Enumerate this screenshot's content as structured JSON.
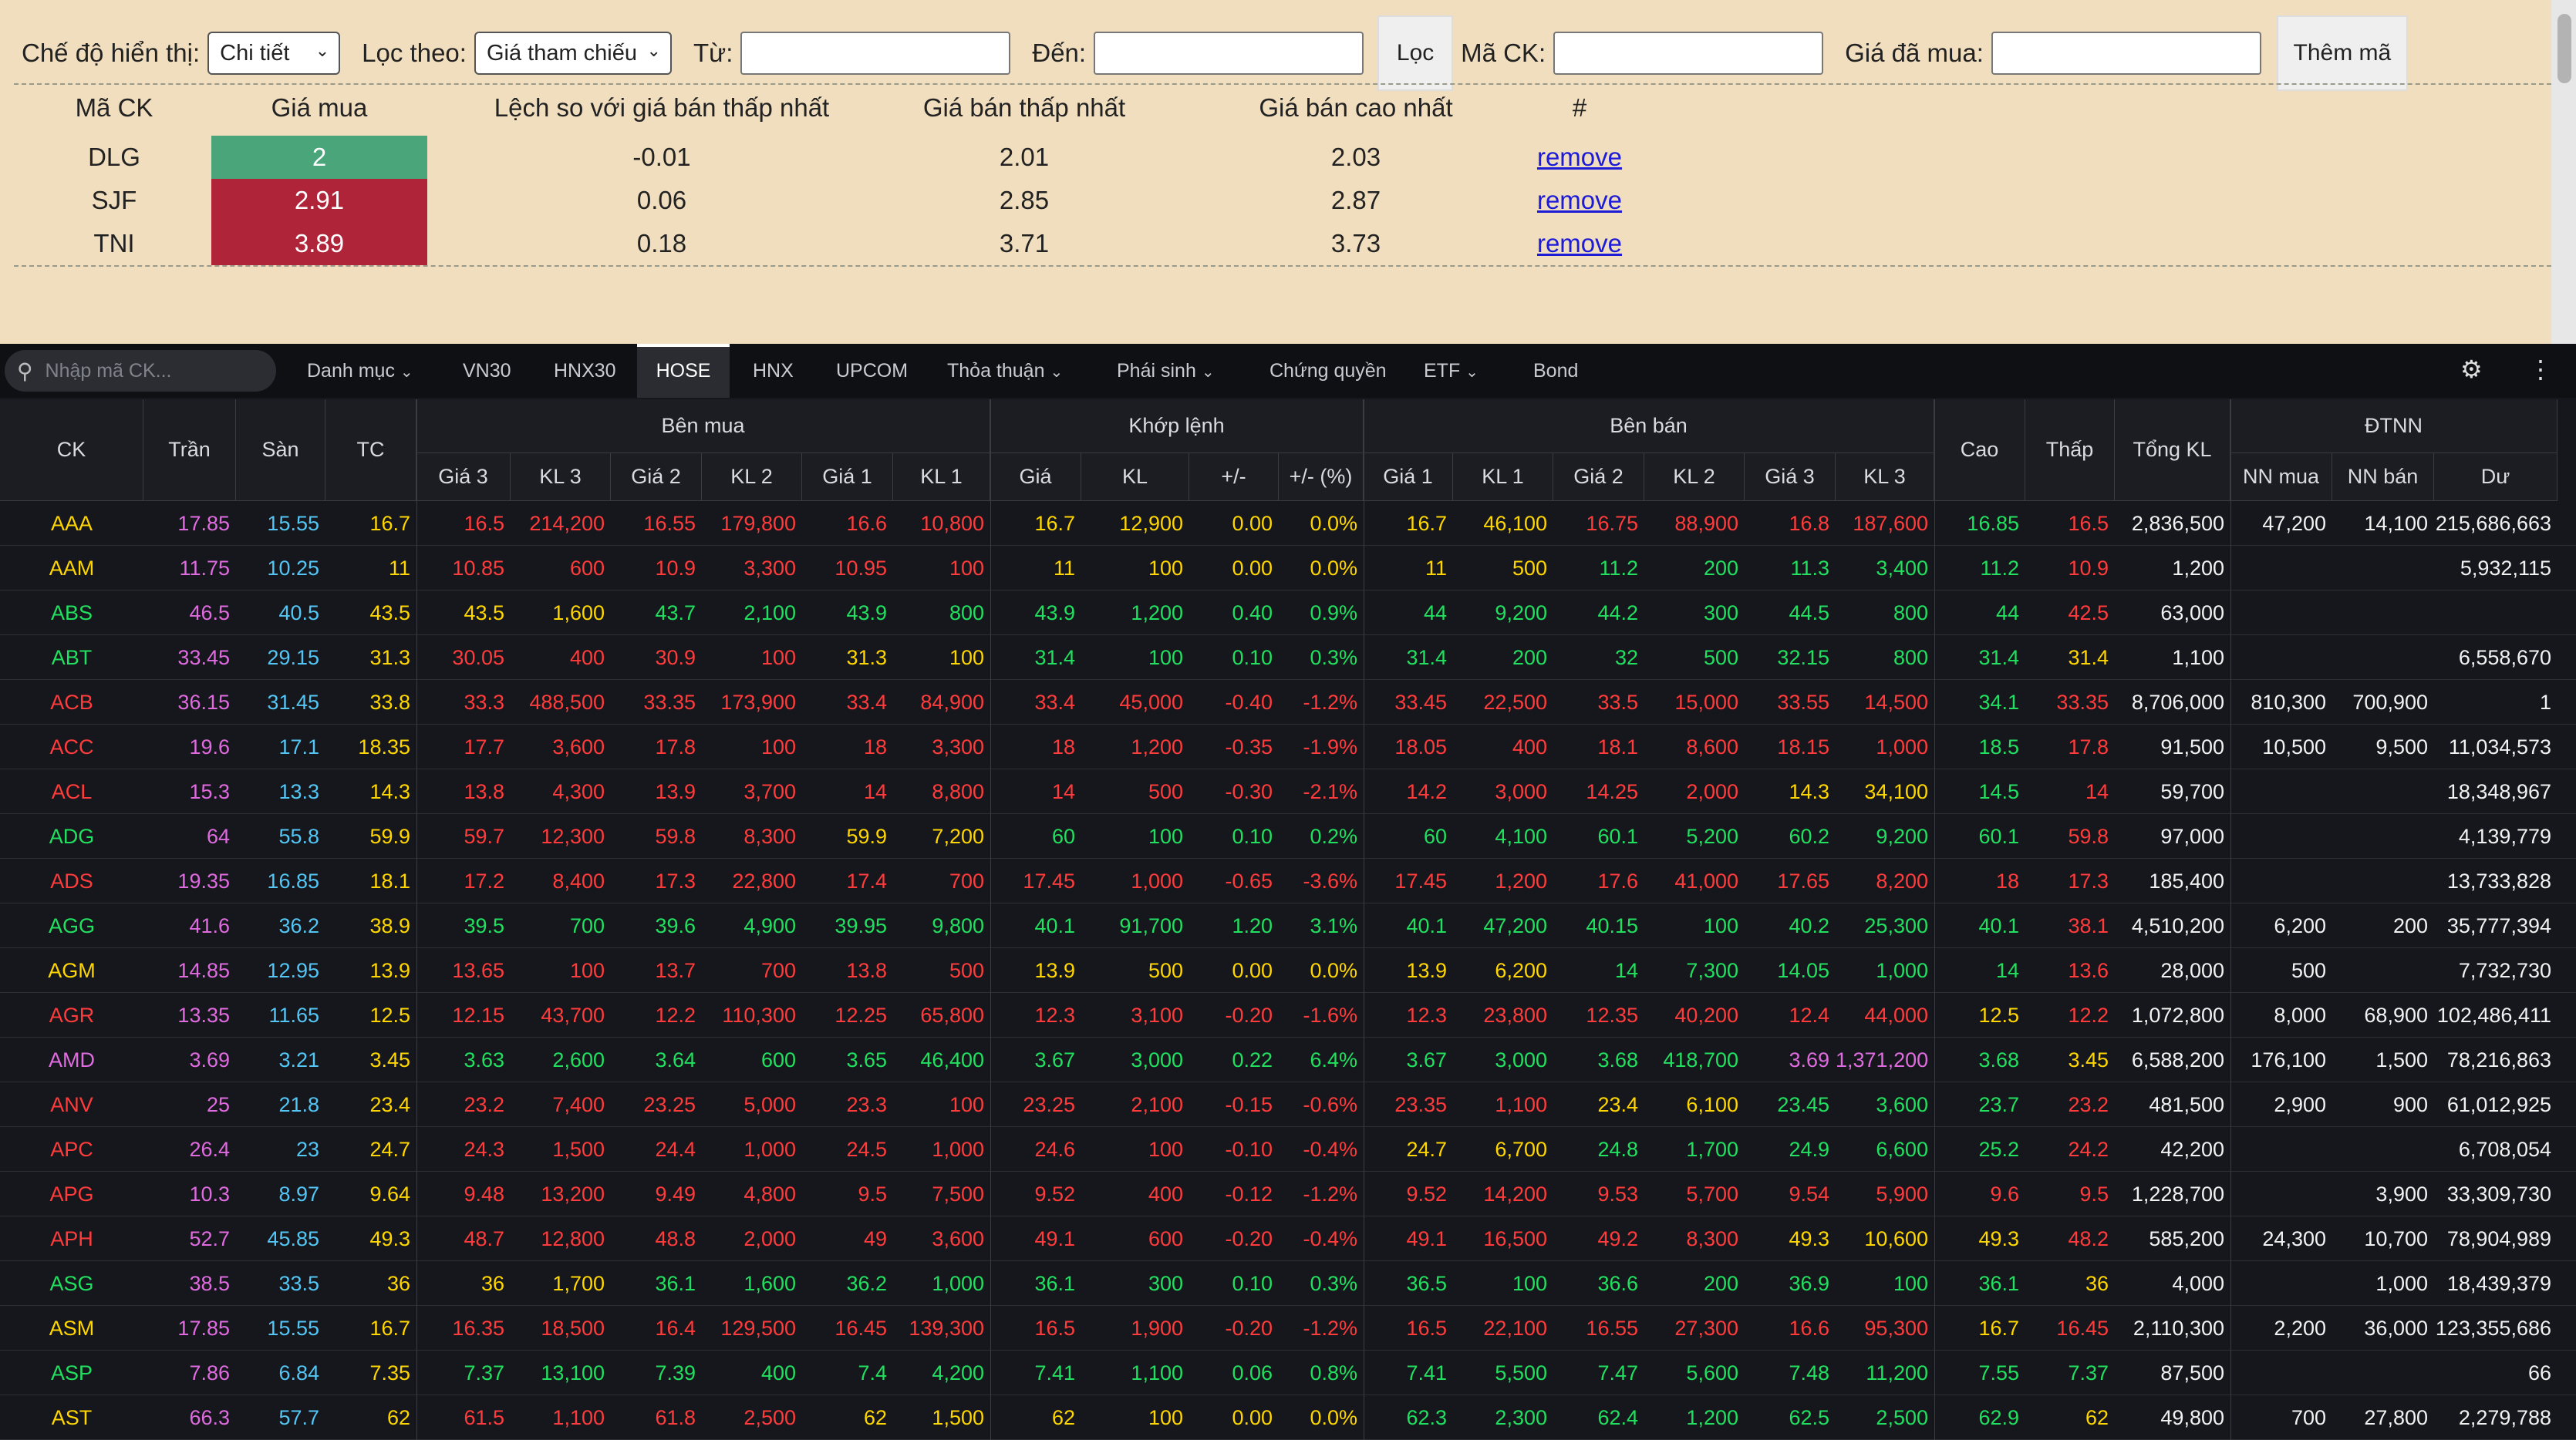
{
  "filter": {
    "display_mode_label": "Chế độ hiển thị:",
    "display_mode_value": "Chi tiết",
    "filter_by_label": "Lọc theo:",
    "filter_by_value": "Giá tham chiếu",
    "from_label": "Từ:",
    "to_label": "Đến:",
    "filter_button": "Lọc",
    "code_label": "Mã CK:",
    "bought_price_label": "Giá đã mua:",
    "add_button": "Thêm mã"
  },
  "watchlist": {
    "headers": [
      "Mã CK",
      "Giá mua",
      "Lệch so với giá bán thấp nhất",
      "Giá bán thấp nhất",
      "Giá bán cao nhất",
      "#"
    ],
    "rows": [
      {
        "code": "DLG",
        "buy": "2",
        "diff": "-0.01",
        "low": "2.01",
        "high": "2.03",
        "action": "remove",
        "bg": "#4aa57a"
      },
      {
        "code": "SJF",
        "buy": "2.91",
        "diff": "0.06",
        "low": "2.85",
        "high": "2.87",
        "action": "remove",
        "bg": "#b0243a"
      },
      {
        "code": "TNI",
        "buy": "3.89",
        "diff": "0.18",
        "low": "3.71",
        "high": "3.73",
        "action": "remove",
        "bg": "#b0243a"
      }
    ]
  },
  "toolbar": {
    "search_placeholder": "Nhập mã CK...",
    "tabs": [
      "Danh mục",
      "VN30",
      "HNX30",
      "HOSE",
      "HNX",
      "UPCOM",
      "Thỏa thuận",
      "Phái sinh",
      "Chứng quyền",
      "ETF",
      "Bond"
    ],
    "active_tab": "HOSE"
  },
  "board": {
    "group_headers": {
      "buy": "Bên mua",
      "match": "Khớp lệnh",
      "sell": "Bên bán",
      "foreign": "ĐTNN"
    },
    "headers": [
      "CK",
      "Trần",
      "Sàn",
      "TC",
      "Giá 3",
      "KL 3",
      "Giá 2",
      "KL 2",
      "Giá 1",
      "KL 1",
      "Giá",
      "KL",
      "+/-",
      "+/- (%)",
      "Giá 1",
      "KL 1",
      "Giá 2",
      "KL 2",
      "Giá 3",
      "KL 3",
      "Cao",
      "Thấp",
      "Tổng KL",
      "NN mua",
      "NN bán",
      "Dư"
    ],
    "rows": [
      [
        "AAA",
        "17.85",
        "15.55",
        "16.7",
        "16.5",
        "214,200",
        "16.55",
        "179,800",
        "16.6",
        "10,800",
        "16.7",
        "12,900",
        "0.00",
        "0.0%",
        "16.7",
        "46,100",
        "16.75",
        "88,900",
        "16.8",
        "187,600",
        "16.85",
        "16.5",
        "2,836,500",
        "47,200",
        "14,100",
        "215,686,663"
      ],
      [
        "AAM",
        "11.75",
        "10.25",
        "11",
        "10.85",
        "600",
        "10.9",
        "3,300",
        "10.95",
        "100",
        "11",
        "100",
        "0.00",
        "0.0%",
        "11",
        "500",
        "11.2",
        "200",
        "11.3",
        "3,400",
        "11.2",
        "10.9",
        "1,200",
        "",
        "",
        "5,932,115"
      ],
      [
        "ABS",
        "46.5",
        "40.5",
        "43.5",
        "43.5",
        "1,600",
        "43.7",
        "2,100",
        "43.9",
        "800",
        "43.9",
        "1,200",
        "0.40",
        "0.9%",
        "44",
        "9,200",
        "44.2",
        "300",
        "44.5",
        "800",
        "44",
        "42.5",
        "63,000",
        "",
        "",
        ""
      ],
      [
        "ABT",
        "33.45",
        "29.15",
        "31.3",
        "30.05",
        "400",
        "30.9",
        "100",
        "31.3",
        "100",
        "31.4",
        "100",
        "0.10",
        "0.3%",
        "31.4",
        "200",
        "32",
        "500",
        "32.15",
        "800",
        "31.4",
        "31.4",
        "1,100",
        "",
        "",
        "6,558,670"
      ],
      [
        "ACB",
        "36.15",
        "31.45",
        "33.8",
        "33.3",
        "488,500",
        "33.35",
        "173,900",
        "33.4",
        "84,900",
        "33.4",
        "45,000",
        "-0.40",
        "-1.2%",
        "33.45",
        "22,500",
        "33.5",
        "15,000",
        "33.55",
        "14,500",
        "34.1",
        "33.35",
        "8,706,000",
        "810,300",
        "700,900",
        "1"
      ],
      [
        "ACC",
        "19.6",
        "17.1",
        "18.35",
        "17.7",
        "3,600",
        "17.8",
        "100",
        "18",
        "3,300",
        "18",
        "1,200",
        "-0.35",
        "-1.9%",
        "18.05",
        "400",
        "18.1",
        "8,600",
        "18.15",
        "1,000",
        "18.5",
        "17.8",
        "91,500",
        "10,500",
        "9,500",
        "11,034,573"
      ],
      [
        "ACL",
        "15.3",
        "13.3",
        "14.3",
        "13.8",
        "4,300",
        "13.9",
        "3,700",
        "14",
        "8,800",
        "14",
        "500",
        "-0.30",
        "-2.1%",
        "14.2",
        "3,000",
        "14.25",
        "2,000",
        "14.3",
        "34,100",
        "14.5",
        "14",
        "59,700",
        "",
        "",
        "18,348,967"
      ],
      [
        "ADG",
        "64",
        "55.8",
        "59.9",
        "59.7",
        "12,300",
        "59.8",
        "8,300",
        "59.9",
        "7,200",
        "60",
        "100",
        "0.10",
        "0.2%",
        "60",
        "4,100",
        "60.1",
        "5,200",
        "60.2",
        "9,200",
        "60.1",
        "59.8",
        "97,000",
        "",
        "",
        "4,139,779"
      ],
      [
        "ADS",
        "19.35",
        "16.85",
        "18.1",
        "17.2",
        "8,400",
        "17.3",
        "22,800",
        "17.4",
        "700",
        "17.45",
        "1,000",
        "-0.65",
        "-3.6%",
        "17.45",
        "1,200",
        "17.6",
        "41,000",
        "17.65",
        "8,200",
        "18",
        "17.3",
        "185,400",
        "",
        "",
        "13,733,828"
      ],
      [
        "AGG",
        "41.6",
        "36.2",
        "38.9",
        "39.5",
        "700",
        "39.6",
        "4,900",
        "39.95",
        "9,800",
        "40.1",
        "91,700",
        "1.20",
        "3.1%",
        "40.1",
        "47,200",
        "40.15",
        "100",
        "40.2",
        "25,300",
        "40.1",
        "38.1",
        "4,510,200",
        "6,200",
        "200",
        "35,777,394"
      ],
      [
        "AGM",
        "14.85",
        "12.95",
        "13.9",
        "13.65",
        "100",
        "13.7",
        "700",
        "13.8",
        "500",
        "13.9",
        "500",
        "0.00",
        "0.0%",
        "13.9",
        "6,200",
        "14",
        "7,300",
        "14.05",
        "1,000",
        "14",
        "13.6",
        "28,000",
        "500",
        "",
        "7,732,730"
      ],
      [
        "AGR",
        "13.35",
        "11.65",
        "12.5",
        "12.15",
        "43,700",
        "12.2",
        "110,300",
        "12.25",
        "65,800",
        "12.3",
        "3,100",
        "-0.20",
        "-1.6%",
        "12.3",
        "23,800",
        "12.35",
        "40,200",
        "12.4",
        "44,000",
        "12.5",
        "12.2",
        "1,072,800",
        "8,000",
        "68,900",
        "102,486,411"
      ],
      [
        "AMD",
        "3.69",
        "3.21",
        "3.45",
        "3.63",
        "2,600",
        "3.64",
        "600",
        "3.65",
        "46,400",
        "3.67",
        "3,000",
        "0.22",
        "6.4%",
        "3.67",
        "3,000",
        "3.68",
        "418,700",
        "3.69",
        "1,371,200",
        "3.68",
        "3.45",
        "6,588,200",
        "176,100",
        "1,500",
        "78,216,863"
      ],
      [
        "ANV",
        "25",
        "21.8",
        "23.4",
        "23.2",
        "7,400",
        "23.25",
        "5,000",
        "23.3",
        "100",
        "23.25",
        "2,100",
        "-0.15",
        "-0.6%",
        "23.35",
        "1,100",
        "23.4",
        "6,100",
        "23.45",
        "3,600",
        "23.7",
        "23.2",
        "481,500",
        "2,900",
        "900",
        "61,012,925"
      ],
      [
        "APC",
        "26.4",
        "23",
        "24.7",
        "24.3",
        "1,500",
        "24.4",
        "1,000",
        "24.5",
        "1,000",
        "24.6",
        "100",
        "-0.10",
        "-0.4%",
        "24.7",
        "6,700",
        "24.8",
        "1,700",
        "24.9",
        "6,600",
        "25.2",
        "24.2",
        "42,200",
        "",
        "",
        "6,708,054"
      ],
      [
        "APG",
        "10.3",
        "8.97",
        "9.64",
        "9.48",
        "13,200",
        "9.49",
        "4,800",
        "9.5",
        "7,500",
        "9.52",
        "400",
        "-0.12",
        "-1.2%",
        "9.52",
        "14,200",
        "9.53",
        "5,700",
        "9.54",
        "5,900",
        "9.6",
        "9.5",
        "1,228,700",
        "",
        "3,900",
        "33,309,730"
      ],
      [
        "APH",
        "52.7",
        "45.85",
        "49.3",
        "48.7",
        "12,800",
        "48.8",
        "2,000",
        "49",
        "3,600",
        "49.1",
        "600",
        "-0.20",
        "-0.4%",
        "49.1",
        "16,500",
        "49.2",
        "8,300",
        "49.3",
        "10,600",
        "49.3",
        "48.2",
        "585,200",
        "24,300",
        "10,700",
        "78,904,989"
      ],
      [
        "ASG",
        "38.5",
        "33.5",
        "36",
        "36",
        "1,700",
        "36.1",
        "1,600",
        "36.2",
        "1,000",
        "36.1",
        "300",
        "0.10",
        "0.3%",
        "36.5",
        "100",
        "36.6",
        "200",
        "36.9",
        "100",
        "36.1",
        "36",
        "4,000",
        "",
        "1,000",
        "18,439,379"
      ],
      [
        "ASM",
        "17.85",
        "15.55",
        "16.7",
        "16.35",
        "18,500",
        "16.4",
        "129,500",
        "16.45",
        "139,300",
        "16.5",
        "1,900",
        "-0.20",
        "-1.2%",
        "16.5",
        "22,100",
        "16.55",
        "27,300",
        "16.6",
        "95,300",
        "16.7",
        "16.45",
        "2,110,300",
        "2,200",
        "36,000",
        "123,355,686"
      ],
      [
        "ASP",
        "7.86",
        "6.84",
        "7.35",
        "7.37",
        "13,100",
        "7.39",
        "400",
        "7.4",
        "4,200",
        "7.41",
        "1,100",
        "0.06",
        "0.8%",
        "7.41",
        "5,500",
        "7.47",
        "5,600",
        "7.48",
        "11,200",
        "7.55",
        "7.37",
        "87,500",
        "",
        "",
        "66"
      ],
      [
        "AST",
        "66.3",
        "57.7",
        "62",
        "61.5",
        "1,100",
        "61.8",
        "2,500",
        "62",
        "1,500",
        "62",
        "100",
        "0.00",
        "0.0%",
        "62.3",
        "2,300",
        "62.4",
        "1,200",
        "62.5",
        "2,500",
        "62.9",
        "62",
        "49,800",
        "700",
        "27,800",
        "2,279,788"
      ]
    ],
    "row_colors": [
      [
        "y",
        "p",
        "c",
        "y",
        "r",
        "r",
        "r",
        "r",
        "r",
        "r",
        "y",
        "y",
        "y",
        "y",
        "y",
        "y",
        "r",
        "r",
        "r",
        "r",
        "g",
        "r",
        "w",
        "w",
        "w",
        "w"
      ],
      [
        "y",
        "p",
        "c",
        "y",
        "r",
        "r",
        "r",
        "r",
        "r",
        "r",
        "y",
        "y",
        "y",
        "y",
        "y",
        "y",
        "g",
        "g",
        "g",
        "g",
        "g",
        "r",
        "w",
        "w",
        "w",
        "w"
      ],
      [
        "g",
        "p",
        "c",
        "y",
        "y",
        "y",
        "g",
        "g",
        "g",
        "g",
        "g",
        "g",
        "g",
        "g",
        "g",
        "g",
        "g",
        "g",
        "g",
        "g",
        "g",
        "r",
        "w",
        "w",
        "w",
        "w"
      ],
      [
        "g",
        "p",
        "c",
        "y",
        "r",
        "r",
        "r",
        "r",
        "y",
        "y",
        "g",
        "g",
        "g",
        "g",
        "g",
        "g",
        "g",
        "g",
        "g",
        "g",
        "g",
        "y",
        "w",
        "w",
        "w",
        "w"
      ],
      [
        "r",
        "p",
        "c",
        "y",
        "r",
        "r",
        "r",
        "r",
        "r",
        "r",
        "r",
        "r",
        "r",
        "r",
        "r",
        "r",
        "r",
        "r",
        "r",
        "r",
        "g",
        "r",
        "w",
        "w",
        "w",
        "w"
      ],
      [
        "r",
        "p",
        "c",
        "y",
        "r",
        "r",
        "r",
        "r",
        "r",
        "r",
        "r",
        "r",
        "r",
        "r",
        "r",
        "r",
        "r",
        "r",
        "r",
        "r",
        "g",
        "r",
        "w",
        "w",
        "w",
        "w"
      ],
      [
        "r",
        "p",
        "c",
        "y",
        "r",
        "r",
        "r",
        "r",
        "r",
        "r",
        "r",
        "r",
        "r",
        "r",
        "r",
        "r",
        "r",
        "r",
        "y",
        "y",
        "g",
        "r",
        "w",
        "w",
        "w",
        "w"
      ],
      [
        "g",
        "p",
        "c",
        "y",
        "r",
        "r",
        "r",
        "r",
        "y",
        "y",
        "g",
        "g",
        "g",
        "g",
        "g",
        "g",
        "g",
        "g",
        "g",
        "g",
        "g",
        "r",
        "w",
        "w",
        "w",
        "w"
      ],
      [
        "r",
        "p",
        "c",
        "y",
        "r",
        "r",
        "r",
        "r",
        "r",
        "r",
        "r",
        "r",
        "r",
        "r",
        "r",
        "r",
        "r",
        "r",
        "r",
        "r",
        "r",
        "r",
        "w",
        "w",
        "w",
        "w"
      ],
      [
        "g",
        "p",
        "c",
        "y",
        "g",
        "g",
        "g",
        "g",
        "g",
        "g",
        "g",
        "g",
        "g",
        "g",
        "g",
        "g",
        "g",
        "g",
        "g",
        "g",
        "g",
        "r",
        "w",
        "w",
        "w",
        "w"
      ],
      [
        "y",
        "p",
        "c",
        "y",
        "r",
        "r",
        "r",
        "r",
        "r",
        "r",
        "y",
        "y",
        "y",
        "y",
        "y",
        "y",
        "g",
        "g",
        "g",
        "g",
        "g",
        "r",
        "w",
        "w",
        "w",
        "w"
      ],
      [
        "r",
        "p",
        "c",
        "y",
        "r",
        "r",
        "r",
        "r",
        "r",
        "r",
        "r",
        "r",
        "r",
        "r",
        "r",
        "r",
        "r",
        "r",
        "r",
        "r",
        "y",
        "r",
        "w",
        "w",
        "w",
        "w"
      ],
      [
        "p",
        "p",
        "c",
        "y",
        "g",
        "g",
        "g",
        "g",
        "g",
        "g",
        "g",
        "g",
        "g",
        "g",
        "g",
        "g",
        "g",
        "g",
        "p",
        "p",
        "g",
        "y",
        "w",
        "w",
        "w",
        "w"
      ],
      [
        "r",
        "p",
        "c",
        "y",
        "r",
        "r",
        "r",
        "r",
        "r",
        "r",
        "r",
        "r",
        "r",
        "r",
        "r",
        "r",
        "y",
        "y",
        "g",
        "g",
        "g",
        "r",
        "w",
        "w",
        "w",
        "w"
      ],
      [
        "r",
        "p",
        "c",
        "y",
        "r",
        "r",
        "r",
        "r",
        "r",
        "r",
        "r",
        "r",
        "r",
        "r",
        "y",
        "y",
        "g",
        "g",
        "g",
        "g",
        "g",
        "r",
        "w",
        "w",
        "w",
        "w"
      ],
      [
        "r",
        "p",
        "c",
        "y",
        "r",
        "r",
        "r",
        "r",
        "r",
        "r",
        "r",
        "r",
        "r",
        "r",
        "r",
        "r",
        "r",
        "r",
        "r",
        "r",
        "r",
        "r",
        "w",
        "w",
        "w",
        "w"
      ],
      [
        "r",
        "p",
        "c",
        "y",
        "r",
        "r",
        "r",
        "r",
        "r",
        "r",
        "r",
        "r",
        "r",
        "r",
        "r",
        "r",
        "r",
        "r",
        "y",
        "y",
        "y",
        "r",
        "w",
        "w",
        "w",
        "w"
      ],
      [
        "g",
        "p",
        "c",
        "y",
        "y",
        "y",
        "g",
        "g",
        "g",
        "g",
        "g",
        "g",
        "g",
        "g",
        "g",
        "g",
        "g",
        "g",
        "g",
        "g",
        "g",
        "y",
        "w",
        "w",
        "w",
        "w"
      ],
      [
        "y",
        "p",
        "c",
        "y",
        "r",
        "r",
        "r",
        "r",
        "r",
        "r",
        "r",
        "r",
        "r",
        "r",
        "r",
        "r",
        "r",
        "r",
        "r",
        "r",
        "y",
        "r",
        "w",
        "w",
        "w",
        "w"
      ],
      [
        "g",
        "p",
        "c",
        "y",
        "g",
        "g",
        "g",
        "g",
        "g",
        "g",
        "g",
        "g",
        "g",
        "g",
        "g",
        "g",
        "g",
        "g",
        "g",
        "g",
        "g",
        "g",
        "w",
        "w",
        "w",
        "w"
      ],
      [
        "y",
        "p",
        "c",
        "y",
        "r",
        "r",
        "r",
        "r",
        "y",
        "y",
        "y",
        "y",
        "y",
        "y",
        "g",
        "g",
        "g",
        "g",
        "g",
        "g",
        "g",
        "y",
        "w",
        "w",
        "w",
        "w"
      ]
    ]
  }
}
